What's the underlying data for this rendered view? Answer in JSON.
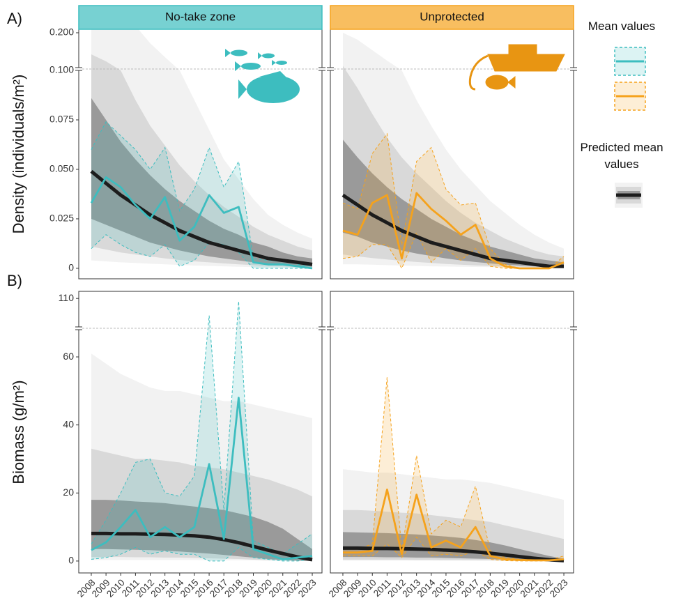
{
  "chart_data": [
    {
      "type": "line",
      "title": "No-take zone",
      "row_label": "A)",
      "ylabel": "Density (individuals/m²)",
      "x": [
        2008,
        2009,
        2010,
        2011,
        2012,
        2013,
        2014,
        2015,
        2016,
        2017,
        2018,
        2019,
        2020,
        2021,
        2022,
        2023
      ],
      "xlim": [
        2007.15,
        2023.66
      ],
      "ylim": [
        -0.0053,
        0.21
      ],
      "ybreak": [
        0.1,
        0.1
      ],
      "yticks": [
        0,
        0.025,
        {
          "value": 0.05,
          "label": "0.050"
        },
        {
          "value": 0.075,
          "label": "0.075"
        },
        {
          "value": 0.1,
          "label": "0.100"
        },
        {
          "value": 0.2,
          "label": "0.200"
        }
      ],
      "prediction": {
        "color": "#1c1c1c",
        "values": [
          0.049,
          0.043,
          0.037,
          0.032,
          0.027,
          0.023,
          0.019,
          0.016,
          0.013,
          0.011,
          0.009,
          0.007,
          0.005,
          0.004,
          0.003,
          0.002
        ]
      },
      "prediction_bands": [
        {
          "color": "#f2f2f2",
          "upper": [
            0.25,
            0.25,
            0.25,
            0.22,
            0.17,
            0.13,
            0.1,
            0.085,
            0.07,
            0.055,
            0.045,
            0.035,
            0.027,
            0.022,
            0.018,
            0.015
          ],
          "lower": [
            0.004,
            0.0035,
            0.003,
            0.0027,
            0.0023,
            0.002,
            0.0017,
            0.0014,
            0.0012,
            0.001,
            0.0008,
            0.0006,
            0.0005,
            0.0004,
            0.0003,
            0.0002
          ]
        },
        {
          "color": "#d9d9d9",
          "upper": [
            0.138,
            0.118,
            0.1,
            0.085,
            0.072,
            0.062,
            0.052,
            0.044,
            0.037,
            0.031,
            0.026,
            0.021,
            0.017,
            0.014,
            0.011,
            0.009
          ],
          "lower": [
            0.011,
            0.0095,
            0.008,
            0.007,
            0.006,
            0.005,
            0.0042,
            0.0035,
            0.003,
            0.0025,
            0.002,
            0.0016,
            0.0012,
            0.001,
            0.0007,
            0.0005
          ]
        },
        {
          "color": "#9a9a9a",
          "upper": [
            0.086,
            0.075,
            0.064,
            0.055,
            0.047,
            0.04,
            0.034,
            0.029,
            0.024,
            0.02,
            0.017,
            0.013,
            0.011,
            0.008,
            0.006,
            0.005
          ],
          "lower": [
            0.025,
            0.022,
            0.019,
            0.016,
            0.013,
            0.011,
            0.009,
            0.0075,
            0.006,
            0.005,
            0.004,
            0.003,
            0.0023,
            0.0017,
            0.0012,
            0.0008
          ]
        }
      ],
      "series": [
        {
          "color": "#3dbdbf",
          "values": [
            0.033,
            0.046,
            0.041,
            0.032,
            0.025,
            0.036,
            0.014,
            0.021,
            0.037,
            0.028,
            0.031,
            0.003,
            0.002,
            0.002,
            0.001,
            0
          ],
          "upper": [
            0.06,
            0.074,
            0.067,
            0.06,
            0.05,
            0.061,
            0.029,
            0.04,
            0.061,
            0.041,
            0.054,
            0.005,
            0.004,
            0.004,
            0.002,
            0.001
          ],
          "lower": [
            0.01,
            0.017,
            0.012,
            0.008,
            0.006,
            0.012,
            0.001,
            0.004,
            0.013,
            0.012,
            0.008,
            0,
            0,
            0,
            0,
            0
          ]
        }
      ]
    },
    {
      "type": "line",
      "title": "Unprotected",
      "x": [
        2008,
        2009,
        2010,
        2011,
        2012,
        2013,
        2014,
        2015,
        2016,
        2017,
        2018,
        2019,
        2020,
        2021,
        2022,
        2023
      ],
      "xlim": [
        2007.15,
        2023.66
      ],
      "ylim": [
        -0.0053,
        0.21
      ],
      "ybreak": [
        0.1,
        0.1
      ],
      "prediction": {
        "color": "#1c1c1c",
        "values": [
          0.037,
          0.032,
          0.027,
          0.023,
          0.019,
          0.016,
          0.013,
          0.011,
          0.009,
          0.007,
          0.005,
          0.004,
          0.003,
          0.002,
          0.001,
          0.001
        ]
      },
      "prediction_bands": [
        {
          "color": "#f2f2f2",
          "upper": [
            0.2,
            0.18,
            0.15,
            0.12,
            0.1,
            0.085,
            0.072,
            0.06,
            0.05,
            0.042,
            0.034,
            0.028,
            0.022,
            0.017,
            0.013,
            0.01
          ],
          "lower": [
            0.002,
            0.002,
            0.0018,
            0.0016,
            0.0014,
            0.0012,
            0.001,
            0.0009,
            0.0008,
            0.0007,
            0.0006,
            0.0005,
            0.0004,
            0.0003,
            0.0002,
            0.0001
          ]
        },
        {
          "color": "#d9d9d9",
          "upper": [
            0.105,
            0.091,
            0.078,
            0.066,
            0.056,
            0.048,
            0.041,
            0.034,
            0.028,
            0.023,
            0.019,
            0.015,
            0.012,
            0.009,
            0.007,
            0.006
          ],
          "lower": [
            0.007,
            0.006,
            0.0052,
            0.0045,
            0.0038,
            0.0032,
            0.0027,
            0.0022,
            0.0018,
            0.0015,
            0.0012,
            0.0009,
            0.0007,
            0.0005,
            0.0004,
            0.0003
          ]
        },
        {
          "color": "#9a9a9a",
          "upper": [
            0.065,
            0.056,
            0.048,
            0.041,
            0.035,
            0.03,
            0.025,
            0.021,
            0.017,
            0.014,
            0.011,
            0.009,
            0.007,
            0.005,
            0.004,
            0.003
          ],
          "lower": [
            0.018,
            0.016,
            0.013,
            0.011,
            0.009,
            0.0075,
            0.0062,
            0.005,
            0.004,
            0.0032,
            0.0025,
            0.0019,
            0.0014,
            0.001,
            0.0007,
            0.0005
          ]
        }
      ],
      "series": [
        {
          "color": "#f5a21c",
          "values": [
            0.019,
            0.017,
            0.033,
            0.037,
            0.005,
            0.038,
            0.03,
            0.024,
            0.017,
            0.022,
            0.005,
            0.001,
            0,
            0,
            0,
            0.003
          ],
          "upper": [
            0.033,
            0.03,
            0.058,
            0.068,
            0.012,
            0.054,
            0.061,
            0.04,
            0.032,
            0.033,
            0.01,
            0.002,
            0,
            0,
            0,
            0.006
          ],
          "lower": [
            0.005,
            0.006,
            0.012,
            0.012,
            0,
            0.018,
            0.003,
            0.01,
            0.004,
            0.01,
            0.001,
            0,
            0,
            0,
            0,
            0.001
          ]
        }
      ]
    },
    {
      "type": "line",
      "row_label": "B)",
      "ylabel": "Biomass (g/m²)",
      "x": [
        2008,
        2009,
        2010,
        2011,
        2012,
        2013,
        2014,
        2015,
        2016,
        2017,
        2018,
        2019,
        2020,
        2021,
        2022,
        2023
      ],
      "xticks": [
        2008,
        2009,
        2010,
        2011,
        2012,
        2013,
        2014,
        2015,
        2016,
        2017,
        2018,
        2019,
        2020,
        2021,
        2022,
        2023
      ],
      "xlim": [
        2007.15,
        2023.66
      ],
      "ylim": [
        -3.5,
        112.5
      ],
      "ybreak": [
        68,
        100
      ],
      "yticks": [
        0,
        20,
        40,
        60,
        110
      ],
      "prediction": {
        "color": "#1c1c1c",
        "values": [
          8.1,
          8.1,
          8,
          8,
          7.9,
          7.8,
          7.6,
          7.4,
          7,
          6.3,
          5.4,
          4.3,
          3.2,
          2.2,
          1.2,
          0.4
        ]
      },
      "prediction_bands": [
        {
          "color": "#f2f2f2",
          "upper": [
            61,
            58,
            55,
            53,
            51,
            50,
            50,
            49,
            48,
            47,
            47,
            46,
            45,
            44,
            43,
            42
          ],
          "lower": [
            0.3,
            0.3,
            0.3,
            0.3,
            0.3,
            0.3,
            0.3,
            0.3,
            0.2,
            0.2,
            0.2,
            0.2,
            0.1,
            0.1,
            0.1,
            0
          ]
        },
        {
          "color": "#d9d9d9",
          "upper": [
            33,
            32,
            31,
            30,
            30,
            29.5,
            29,
            28,
            27.5,
            27,
            26,
            25,
            24,
            22.5,
            21,
            19
          ],
          "lower": [
            1.2,
            1.2,
            1.2,
            1.1,
            1.1,
            1,
            1,
            0.9,
            0.8,
            0.7,
            0.6,
            0.4,
            0.3,
            0.2,
            0.1,
            0
          ]
        },
        {
          "color": "#9a9a9a",
          "upper": [
            18,
            18,
            17.8,
            17.5,
            17.3,
            17,
            16.5,
            16,
            15.5,
            15,
            14,
            13,
            11.5,
            9.5,
            6.5,
            3.5
          ],
          "lower": [
            3.5,
            3.5,
            3.4,
            3.3,
            3.2,
            3,
            2.8,
            2.5,
            2.2,
            1.8,
            1.4,
            1,
            0.6,
            0.3,
            0.1,
            0
          ]
        }
      ],
      "series": [
        {
          "color": "#3dbdbf",
          "values": [
            3.2,
            5.5,
            10,
            15,
            7,
            10,
            7,
            10,
            28.5,
            6.5,
            48,
            3.5,
            2,
            0.5,
            1,
            1.5
          ],
          "upper": [
            5,
            12,
            20,
            29,
            30,
            20,
            19,
            25,
            104,
            15,
            109,
            6,
            4,
            2,
            5,
            8
          ],
          "lower": [
            0.5,
            1,
            2,
            4,
            2,
            3,
            2,
            2,
            0,
            0,
            4,
            1,
            0.5,
            0,
            0,
            0.5
          ]
        }
      ]
    },
    {
      "type": "line",
      "x": [
        2008,
        2009,
        2010,
        2011,
        2012,
        2013,
        2014,
        2015,
        2016,
        2017,
        2018,
        2019,
        2020,
        2021,
        2022,
        2023
      ],
      "xticks": [
        2008,
        2009,
        2010,
        2011,
        2012,
        2013,
        2014,
        2015,
        2016,
        2017,
        2018,
        2019,
        2020,
        2021,
        2022,
        2023
      ],
      "xlim": [
        2007.15,
        2023.66
      ],
      "ylim": [
        -3.5,
        112.5
      ],
      "ybreak": [
        68,
        100
      ],
      "prediction": {
        "color": "#1c1c1c",
        "values": [
          3.8,
          3.8,
          3.7,
          3.7,
          3.6,
          3.5,
          3.4,
          3.2,
          3,
          2.7,
          2.3,
          1.8,
          1.3,
          0.8,
          0.4,
          0.1
        ]
      },
      "prediction_bands": [
        {
          "color": "#f2f2f2",
          "upper": [
            27,
            26.5,
            26,
            26,
            25.5,
            25,
            24.5,
            24,
            24,
            23.5,
            23,
            22,
            21,
            20,
            19,
            18
          ],
          "lower": [
            0.1,
            0.1,
            0.1,
            0.1,
            0.1,
            0.1,
            0.1,
            0.1,
            0.1,
            0.1,
            0.1,
            0.05,
            0.05,
            0,
            0,
            0
          ]
        },
        {
          "color": "#d9d9d9",
          "upper": [
            15,
            15,
            14.8,
            14.5,
            14.2,
            14,
            13.5,
            13,
            12.5,
            12,
            11.5,
            10.5,
            9.5,
            8.5,
            7.5,
            6.5
          ],
          "lower": [
            0.4,
            0.4,
            0.4,
            0.4,
            0.4,
            0.35,
            0.35,
            0.3,
            0.3,
            0.25,
            0.2,
            0.15,
            0.1,
            0.05,
            0,
            0
          ]
        },
        {
          "color": "#9a9a9a",
          "upper": [
            8.5,
            8.4,
            8.3,
            8.2,
            8,
            7.8,
            7.5,
            7.2,
            6.8,
            6.2,
            5.5,
            4.6,
            3.5,
            2.5,
            1.5,
            0.7
          ],
          "lower": [
            1.2,
            1.2,
            1.2,
            1.1,
            1.1,
            1,
            1,
            0.9,
            0.8,
            0.7,
            0.6,
            0.4,
            0.3,
            0.2,
            0.1,
            0
          ]
        }
      ],
      "series": [
        {
          "color": "#f5a21c",
          "values": [
            2.5,
            2.5,
            3,
            21,
            2,
            19.5,
            4,
            6,
            4,
            10,
            1.5,
            0.5,
            0.3,
            0.2,
            0.2,
            0.5
          ],
          "upper": [
            3.5,
            3.5,
            5,
            54,
            3,
            31,
            8,
            12,
            10,
            22,
            3,
            1,
            0.5,
            0.4,
            0.3,
            1.5
          ],
          "lower": [
            1.5,
            1.5,
            1.5,
            5,
            1,
            7,
            1.5,
            2,
            1.5,
            3,
            0.5,
            0.1,
            0,
            0,
            0,
            0
          ]
        }
      ]
    }
  ],
  "legend": {
    "mean_title": "Mean values",
    "predicted_title": "Predicted mean values"
  }
}
